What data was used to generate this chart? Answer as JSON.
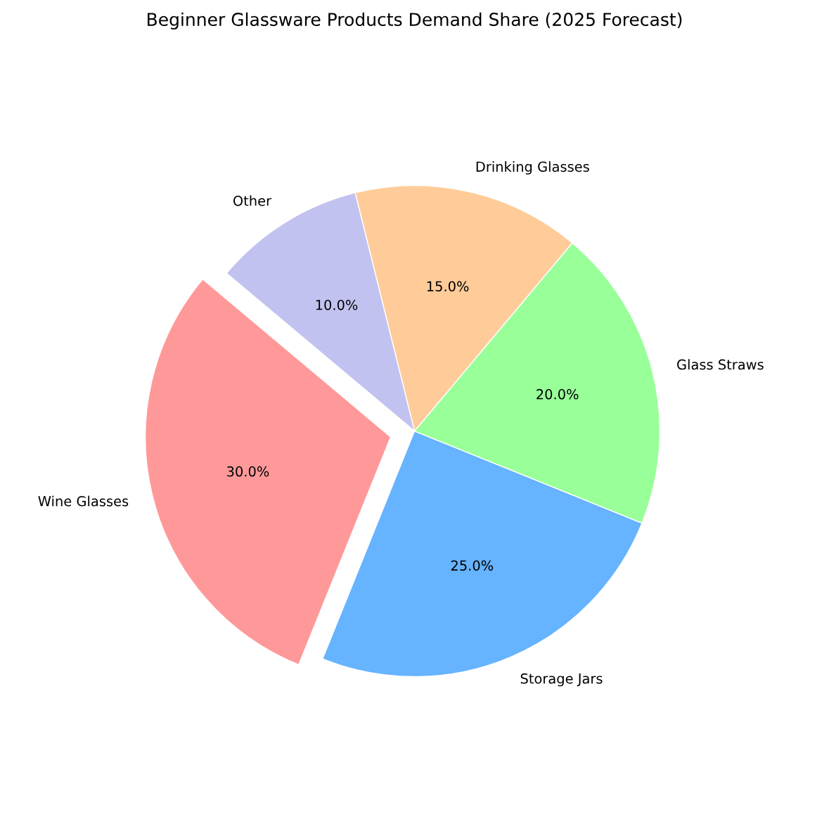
{
  "chart_data": {
    "type": "pie",
    "title": "Beginner Glassware Products Demand Share (2025 Forecast)",
    "categories": [
      "Wine Glasses",
      "Storage Jars",
      "Glass Straws",
      "Drinking Glasses",
      "Other"
    ],
    "values": [
      30,
      25,
      20,
      15,
      10
    ],
    "colors": [
      "#ff9999",
      "#66b3ff",
      "#99ff99",
      "#ffcc99",
      "#c2c2f0"
    ],
    "value_labels": [
      "30.0%",
      "25.0%",
      "20.0%",
      "15.0%",
      "10.0%"
    ],
    "legend": false
  }
}
